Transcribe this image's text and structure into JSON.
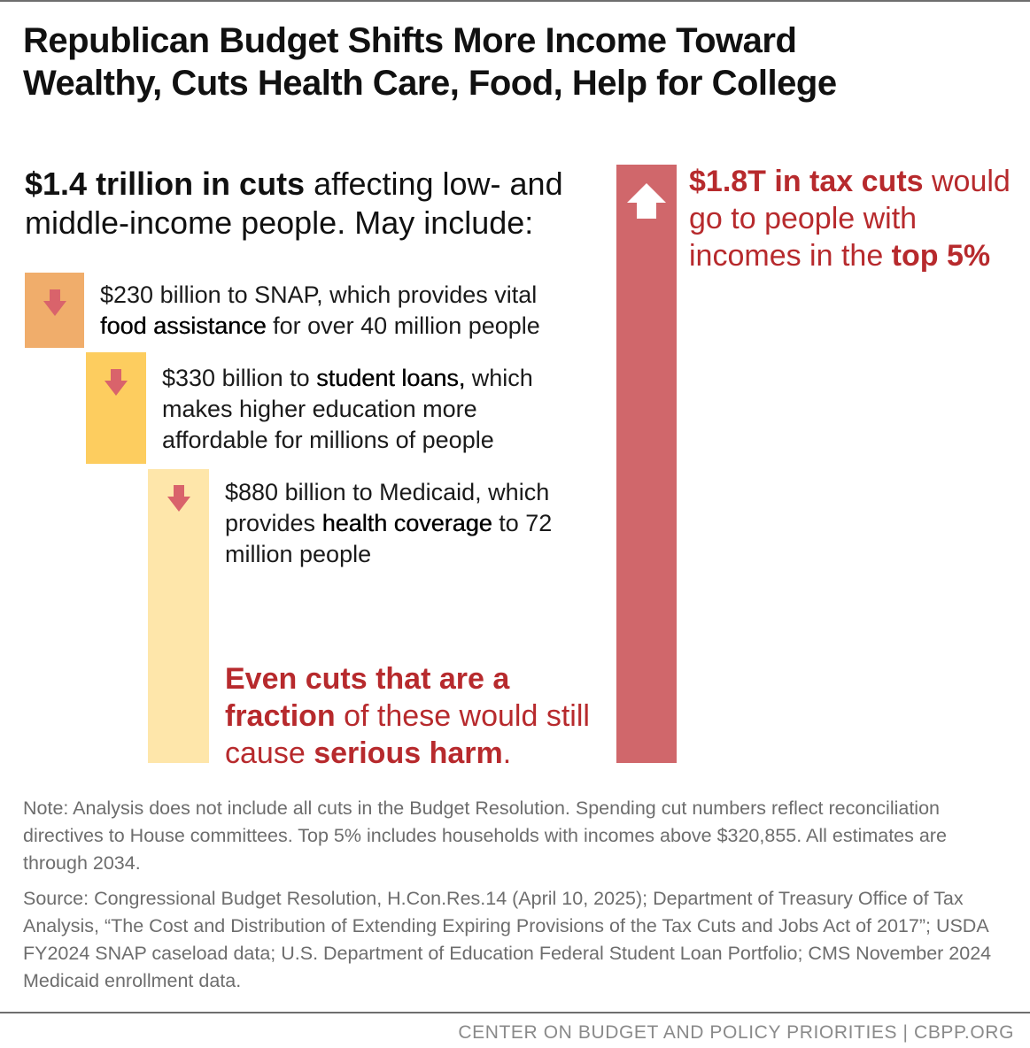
{
  "title": {
    "line1": "Republican Budget Shifts More Income Toward",
    "line2": "Wealthy, Cuts Health Care, Food, Help for College"
  },
  "intro": {
    "bold": "$1.4 trillion in cuts",
    "rest_line1": " affecting low- and",
    "line2": "middle-income people. May include:"
  },
  "items": [
    {
      "amount_text": "$230 billion to SNAP, which provides vital",
      "bold": "food assistance",
      "tail": " for over 40 million people",
      "color": "#f0ad6b",
      "arrow_color": "#d9636b"
    },
    {
      "amount_text": "$330 billion to ",
      "bold": "student loans,",
      "tail1": " which",
      "line2": "makes higher education more",
      "line3": "affordable for millions of people",
      "color": "#fdcd5f",
      "arrow_color": "#d9636b"
    },
    {
      "amount_text": "$880 billion to Medicaid, which",
      "prefix2": "provides ",
      "bold": "health coverage",
      "tail2": " to 72",
      "line3": "million people",
      "color": "#fee6aa",
      "arrow_color": "#d9636b"
    }
  ],
  "harm": {
    "bold1": "Even cuts that are a",
    "bold2": "fraction",
    "rest2": " of these would still",
    "pre3": "cause ",
    "bold3": "serious harm",
    "end3": "."
  },
  "tax": {
    "bold": "$1.8T in tax cuts",
    "rest1": " would",
    "line2": "go to people with",
    "pre3": "incomes in the ",
    "bold3": "top 5%",
    "color": "#d0676b"
  },
  "note": "Note: Analysis does not include all cuts in the Budget Resolution. Spending cut numbers reflect reconciliation directives to House committees. Top 5% includes households with incomes above $320,855. All estimates are through 2034.",
  "source": "Source: Congressional Budget Resolution, H.Con.Res.14 (April 10, 2025); Department of Treasury Office of Tax Analysis, “The Cost and Distribution of Extending Expiring Provisions of the Tax Cuts and Jobs Act of 2017”; USDA FY2024 SNAP caseload data; U.S. Department of Education Federal Student Loan Portfolio; CMS November 2024 Medicaid enrollment data.",
  "footer": "CENTER ON BUDGET AND POLICY PRIORITIES | CBPP.ORG",
  "chart_data": {
    "type": "bar",
    "title": "Republican Budget Shifts More Income Toward Wealthy, Cuts Health Care, Food, Help for College",
    "unit": "billion dollars",
    "categories": [
      "SNAP",
      "student loans",
      "Medicaid",
      "tax cuts"
    ],
    "values": [
      230,
      330,
      880,
      1800
    ],
    "total_cuts": 1400,
    "colors": [
      "#f0ad6b",
      "#fdcd5f",
      "#fee6aa",
      "#d0676b"
    ]
  }
}
